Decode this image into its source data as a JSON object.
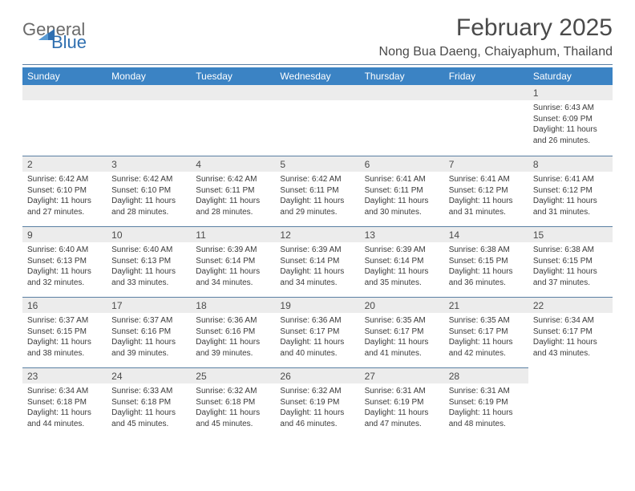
{
  "logo": {
    "line1": "General",
    "line2": "Blue",
    "mark_color": "#2f6fb0",
    "text1_color": "#6a6a6a"
  },
  "title": "February 2025",
  "location": "Nong Bua Daeng, Chaiyaphum, Thailand",
  "header_bg": "#3b83c4",
  "weekday_labels": [
    "Sunday",
    "Monday",
    "Tuesday",
    "Wednesday",
    "Thursday",
    "Friday",
    "Saturday"
  ],
  "leading_blanks": 6,
  "days": [
    {
      "n": 1,
      "sunrise": "6:43 AM",
      "sunset": "6:09 PM",
      "daylight": "11 hours and 26 minutes."
    },
    {
      "n": 2,
      "sunrise": "6:42 AM",
      "sunset": "6:10 PM",
      "daylight": "11 hours and 27 minutes."
    },
    {
      "n": 3,
      "sunrise": "6:42 AM",
      "sunset": "6:10 PM",
      "daylight": "11 hours and 28 minutes."
    },
    {
      "n": 4,
      "sunrise": "6:42 AM",
      "sunset": "6:11 PM",
      "daylight": "11 hours and 28 minutes."
    },
    {
      "n": 5,
      "sunrise": "6:42 AM",
      "sunset": "6:11 PM",
      "daylight": "11 hours and 29 minutes."
    },
    {
      "n": 6,
      "sunrise": "6:41 AM",
      "sunset": "6:11 PM",
      "daylight": "11 hours and 30 minutes."
    },
    {
      "n": 7,
      "sunrise": "6:41 AM",
      "sunset": "6:12 PM",
      "daylight": "11 hours and 31 minutes."
    },
    {
      "n": 8,
      "sunrise": "6:41 AM",
      "sunset": "6:12 PM",
      "daylight": "11 hours and 31 minutes."
    },
    {
      "n": 9,
      "sunrise": "6:40 AM",
      "sunset": "6:13 PM",
      "daylight": "11 hours and 32 minutes."
    },
    {
      "n": 10,
      "sunrise": "6:40 AM",
      "sunset": "6:13 PM",
      "daylight": "11 hours and 33 minutes."
    },
    {
      "n": 11,
      "sunrise": "6:39 AM",
      "sunset": "6:14 PM",
      "daylight": "11 hours and 34 minutes."
    },
    {
      "n": 12,
      "sunrise": "6:39 AM",
      "sunset": "6:14 PM",
      "daylight": "11 hours and 34 minutes."
    },
    {
      "n": 13,
      "sunrise": "6:39 AM",
      "sunset": "6:14 PM",
      "daylight": "11 hours and 35 minutes."
    },
    {
      "n": 14,
      "sunrise": "6:38 AM",
      "sunset": "6:15 PM",
      "daylight": "11 hours and 36 minutes."
    },
    {
      "n": 15,
      "sunrise": "6:38 AM",
      "sunset": "6:15 PM",
      "daylight": "11 hours and 37 minutes."
    },
    {
      "n": 16,
      "sunrise": "6:37 AM",
      "sunset": "6:15 PM",
      "daylight": "11 hours and 38 minutes."
    },
    {
      "n": 17,
      "sunrise": "6:37 AM",
      "sunset": "6:16 PM",
      "daylight": "11 hours and 39 minutes."
    },
    {
      "n": 18,
      "sunrise": "6:36 AM",
      "sunset": "6:16 PM",
      "daylight": "11 hours and 39 minutes."
    },
    {
      "n": 19,
      "sunrise": "6:36 AM",
      "sunset": "6:17 PM",
      "daylight": "11 hours and 40 minutes."
    },
    {
      "n": 20,
      "sunrise": "6:35 AM",
      "sunset": "6:17 PM",
      "daylight": "11 hours and 41 minutes."
    },
    {
      "n": 21,
      "sunrise": "6:35 AM",
      "sunset": "6:17 PM",
      "daylight": "11 hours and 42 minutes."
    },
    {
      "n": 22,
      "sunrise": "6:34 AM",
      "sunset": "6:17 PM",
      "daylight": "11 hours and 43 minutes."
    },
    {
      "n": 23,
      "sunrise": "6:34 AM",
      "sunset": "6:18 PM",
      "daylight": "11 hours and 44 minutes."
    },
    {
      "n": 24,
      "sunrise": "6:33 AM",
      "sunset": "6:18 PM",
      "daylight": "11 hours and 45 minutes."
    },
    {
      "n": 25,
      "sunrise": "6:32 AM",
      "sunset": "6:18 PM",
      "daylight": "11 hours and 45 minutes."
    },
    {
      "n": 26,
      "sunrise": "6:32 AM",
      "sunset": "6:19 PM",
      "daylight": "11 hours and 46 minutes."
    },
    {
      "n": 27,
      "sunrise": "6:31 AM",
      "sunset": "6:19 PM",
      "daylight": "11 hours and 47 minutes."
    },
    {
      "n": 28,
      "sunrise": "6:31 AM",
      "sunset": "6:19 PM",
      "daylight": "11 hours and 48 minutes."
    }
  ],
  "labels": {
    "sunrise": "Sunrise:",
    "sunset": "Sunset:",
    "daylight": "Daylight:"
  }
}
